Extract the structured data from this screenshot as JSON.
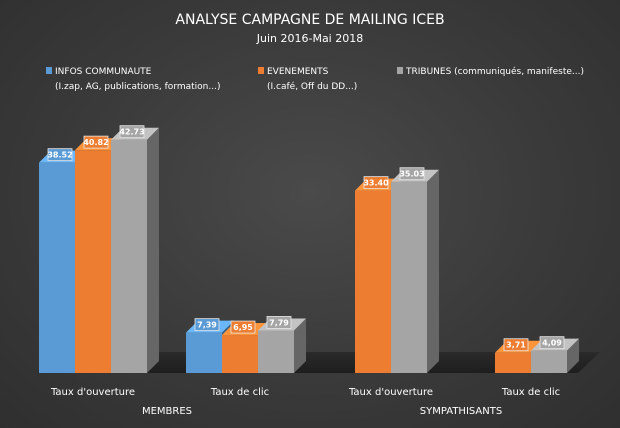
{
  "chart_data": {
    "type": "bar",
    "title": "ANALYSE CAMPAGNE DE MAILING ICEB",
    "subtitle": "Juin 2016-Mai 2018",
    "groups": [
      {
        "name": "MEMBRES",
        "categories": [
          {
            "label": "Taux d'ouverture",
            "values": [
              {
                "series": 0,
                "value": 38.52,
                "label": "38.52"
              },
              {
                "series": 1,
                "value": 40.82,
                "label": "40.82"
              },
              {
                "series": 2,
                "value": 42.73,
                "label": "42.73"
              }
            ]
          },
          {
            "label": "Taux de clic",
            "values": [
              {
                "series": 0,
                "value": 7.39,
                "label": "7,39"
              },
              {
                "series": 1,
                "value": 6.95,
                "label": "6,95"
              },
              {
                "series": 2,
                "value": 7.79,
                "label": "7,79"
              }
            ]
          }
        ]
      },
      {
        "name": "SYMPATHISANTS",
        "categories": [
          {
            "label": "Taux d'ouverture",
            "values": [
              {
                "series": 1,
                "value": 33.4,
                "label": "33.40"
              },
              {
                "series": 2,
                "value": 35.03,
                "label": "35.03"
              }
            ]
          },
          {
            "label": "Taux de clic",
            "values": [
              {
                "series": 1,
                "value": 3.71,
                "label": "3,71"
              },
              {
                "series": 2,
                "value": 4.09,
                "label": "4,09"
              }
            ]
          }
        ]
      }
    ],
    "series": [
      {
        "name": "INFOS COMMUNAUTE",
        "detail": "(I.zap, AG, publications, formation...)",
        "color": "#5b9bd5"
      },
      {
        "name": "EVENEMENTS",
        "detail": "(I.café, Off du DD...)",
        "color": "#ed7d31"
      },
      {
        "name": "TRIBUNES (communiqués, manifeste...)",
        "detail": "",
        "color": "#a5a5a5"
      }
    ],
    "ylim": [
      0,
      50
    ],
    "legend_position": "top",
    "grid": false
  }
}
